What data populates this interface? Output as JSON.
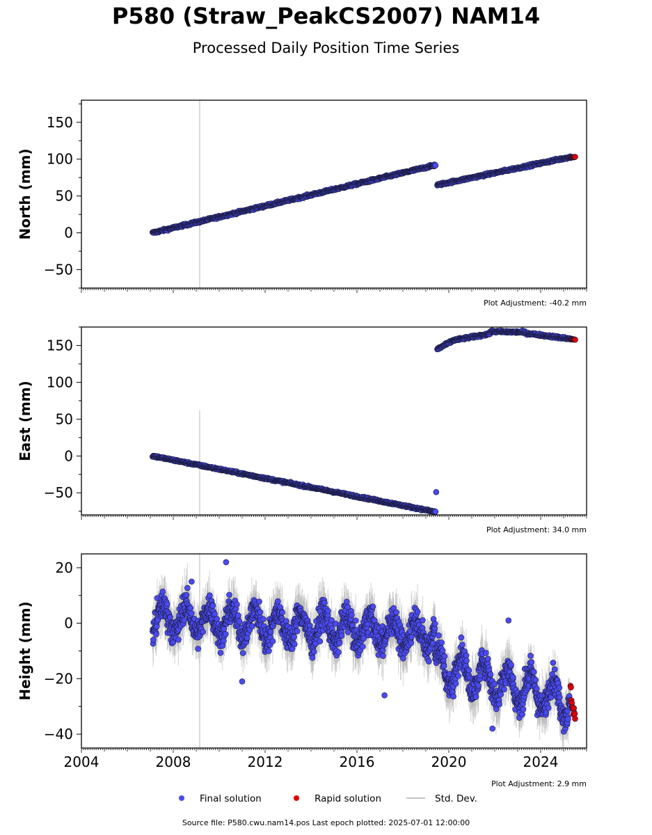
{
  "title": "P580 (Straw_PeakCS2007) NAM14",
  "subtitle": "Processed Daily Position Time Series",
  "source_text": "Source file: P580.cwu.nam14.pos  Last epoch plotted: 2025-07-01 12:00:00",
  "legend": {
    "final_label": "Final solution",
    "rapid_label": "Rapid solution",
    "std_label": "Std. Dev."
  },
  "colors": {
    "final": "#4a4af0",
    "rapid": "#e00000",
    "std": "#b0b0b0",
    "reference_line": "#d0d0d0"
  },
  "chart_data": [
    {
      "type": "scatter",
      "ylabel": "North (mm)",
      "xlim": [
        2004.0,
        2026.0
      ],
      "ylim": [
        -75,
        180
      ],
      "y_ticks": [
        -50,
        0,
        50,
        100,
        150
      ],
      "y_tick_labels": [
        "−50",
        "0",
        "50",
        "100",
        "150"
      ],
      "x_tick_labels_shown": false,
      "adjustment": "Plot Adjustment: -40.2 mm",
      "reference_line_x": 2009.15,
      "series": [
        {
          "name": "Final solution",
          "segments": [
            {
              "x": [
                2007.1,
                2019.42
              ],
              "y": [
                0,
                92
              ],
              "noise": 1.5
            },
            {
              "x": [
                2019.5,
                2025.3
              ],
              "y": [
                65,
                103
              ],
              "noise": 1.5
            }
          ]
        },
        {
          "name": "Rapid solution",
          "segments": [
            {
              "x": [
                2025.3,
                2025.5
              ],
              "y": [
                102.5,
                103
              ],
              "noise": 0.4
            }
          ]
        }
      ]
    },
    {
      "type": "scatter",
      "ylabel": "East (mm)",
      "xlim": [
        2004.0,
        2026.0
      ],
      "ylim": [
        -80,
        175
      ],
      "y_ticks": [
        -50,
        0,
        50,
        100,
        150
      ],
      "y_tick_labels": [
        "−50",
        "0",
        "50",
        "100",
        "150"
      ],
      "x_tick_labels_shown": false,
      "adjustment": "Plot Adjustment: 34.0 mm",
      "reference_line_x": 2009.15,
      "series": [
        {
          "name": "Final solution",
          "segments": [
            {
              "x": [
                2007.1,
                2019.42
              ],
              "y": [
                0,
                -76
              ],
              "noise": 1.3
            },
            {
              "x": [
                2019.5,
                2020.2
              ],
              "y": [
                145,
                157
              ],
              "noise": 1.5
            },
            {
              "x": [
                2020.2,
                2021.8
              ],
              "y": [
                157,
                166
              ],
              "noise": 1.5
            },
            {
              "x": [
                2021.8,
                2023.3
              ],
              "y": [
                169,
                168
              ],
              "noise": 1.5
            },
            {
              "x": [
                2023.3,
                2025.3
              ],
              "y": [
                167,
                159
              ],
              "noise": 1.5
            }
          ],
          "outliers": [
            {
              "x": 2019.45,
              "y": -49
            }
          ]
        },
        {
          "name": "Rapid solution",
          "segments": [
            {
              "x": [
                2025.3,
                2025.5
              ],
              "y": [
                158.5,
                158
              ],
              "noise": 0.4
            }
          ]
        }
      ]
    },
    {
      "type": "scatter",
      "ylabel": "Height (mm)",
      "xlim": [
        2004.0,
        2026.0
      ],
      "ylim": [
        -45,
        25
      ],
      "y_ticks": [
        -40,
        -20,
        0,
        20
      ],
      "y_tick_labels": [
        "−40",
        "−20",
        "0",
        "20"
      ],
      "x_tick_labels_shown": true,
      "x_ticks": [
        2004,
        2008,
        2012,
        2016,
        2020,
        2024
      ],
      "x_tick_labels": [
        "2004",
        "2008",
        "2012",
        "2016",
        "2020",
        "2024"
      ],
      "adjustment": "Plot Adjustment: 2.9 mm",
      "reference_line_x": 2009.15,
      "series": [
        {
          "name": "Final solution",
          "segments": [
            {
              "x": [
                2007.1,
                2019.4
              ],
              "y": [
                2,
                -4
              ],
              "noise": 5.0,
              "seasonal": 5
            },
            {
              "x": [
                2019.4,
                2025.3
              ],
              "y": [
                -15,
                -28
              ],
              "noise": 5.0,
              "seasonal": 6
            }
          ],
          "outliers": [
            {
              "x": 2010.3,
              "y": 22
            },
            {
              "x": 2008.8,
              "y": 15
            },
            {
              "x": 2011.0,
              "y": -21
            },
            {
              "x": 2017.2,
              "y": -26
            },
            {
              "x": 2022.6,
              "y": 1
            },
            {
              "x": 2021.9,
              "y": -38
            }
          ]
        },
        {
          "name": "Rapid solution",
          "segments": [
            {
              "x": [
                2025.3,
                2025.5
              ],
              "y": [
                -25,
                -34
              ],
              "noise": 3.0
            }
          ]
        }
      ]
    }
  ]
}
